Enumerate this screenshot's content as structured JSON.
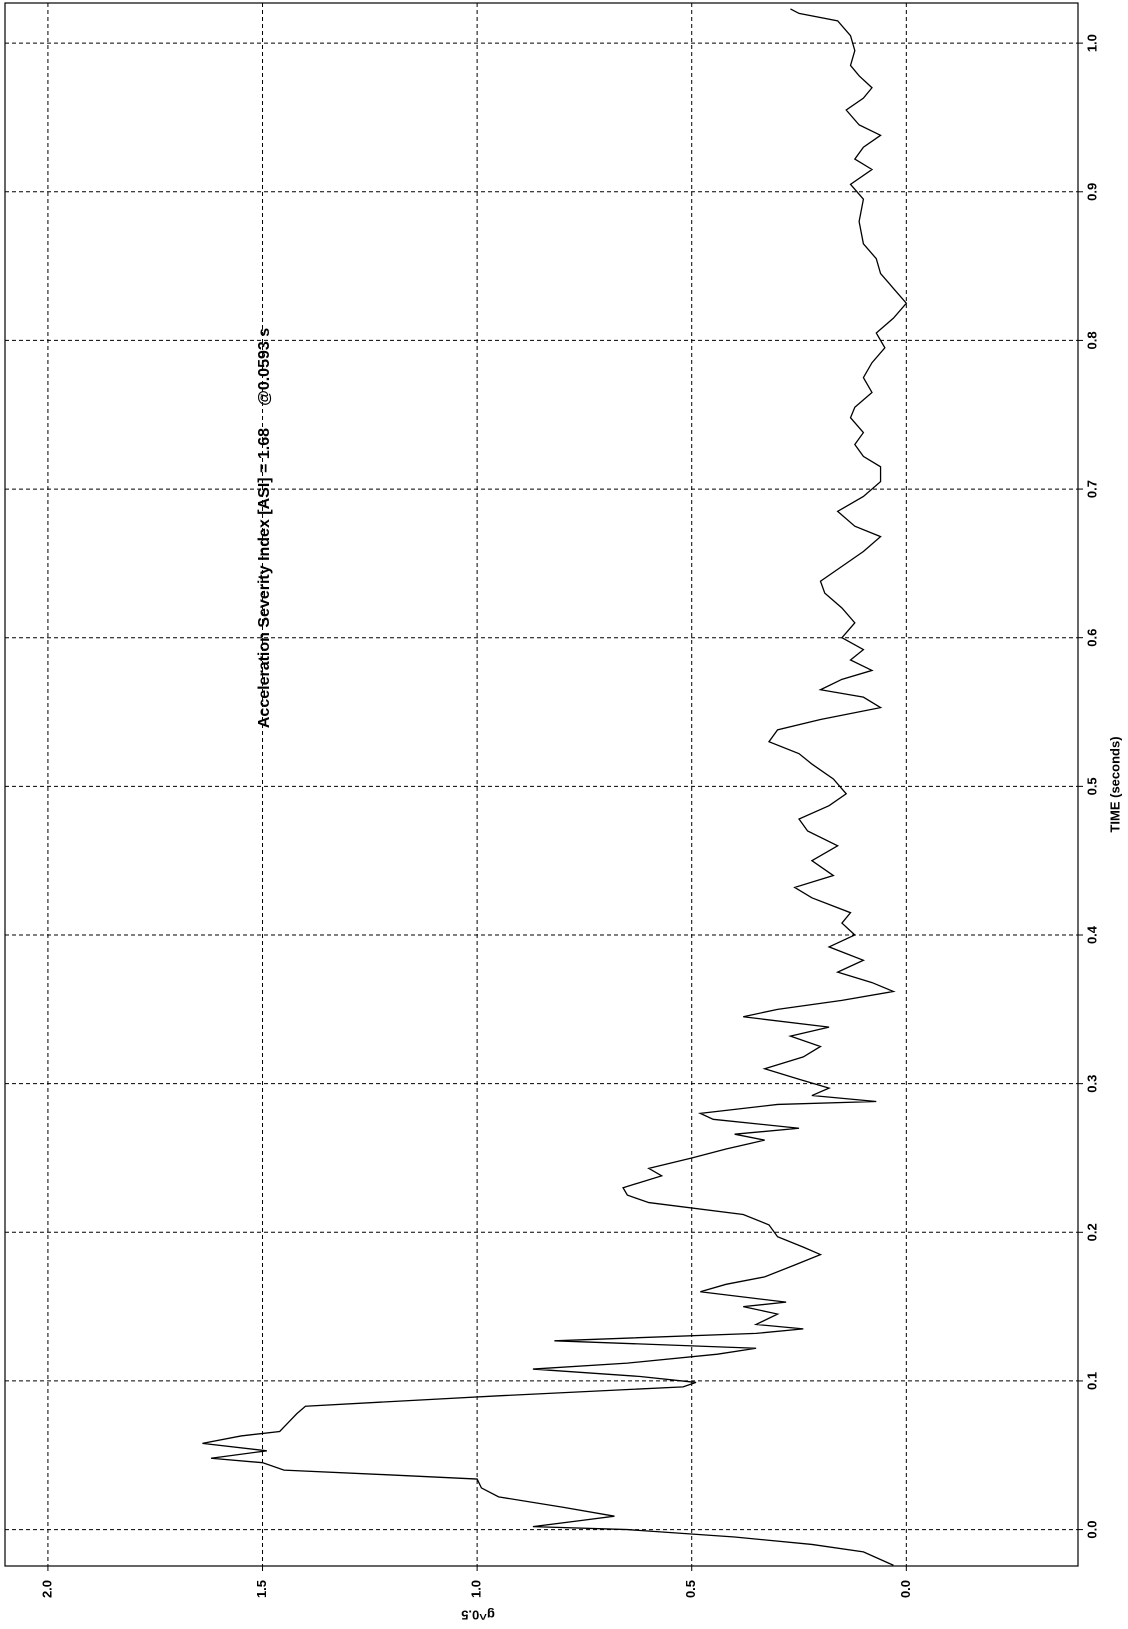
{
  "chart_data": {
    "type": "line",
    "xlabel": "TIME (seconds)",
    "ylabel": "g^0.5",
    "annotation": "Acceleration Severity Index [ASI] = 1.68     @0.0593 s",
    "xlim": [
      -0.0245,
      1.027
    ],
    "ylim": [
      -0.4,
      2.1
    ],
    "xticks": [
      {
        "value": 0,
        "label": "0.0"
      },
      0.1,
      0.2,
      0.3,
      0.4,
      0.5,
      0.6,
      0.7,
      0.8,
      0.9,
      {
        "value": 1,
        "label": "1.0"
      }
    ],
    "yticks": [
      {
        "value": 0,
        "label": "0.0"
      },
      0.5,
      {
        "value": 1,
        "label": "1.0"
      },
      1.5,
      {
        "value": 2,
        "label": "2.0"
      }
    ],
    "grid": true,
    "color": "#000000",
    "x": [
      -0.024,
      -0.015,
      -0.01,
      -0.005,
      0.0,
      0.002,
      0.006,
      0.009,
      0.015,
      0.022,
      0.028,
      0.034,
      0.037,
      0.04,
      0.045,
      0.048,
      0.053,
      0.058,
      0.063,
      0.066,
      0.072,
      0.078,
      0.083,
      0.09,
      0.096,
      0.099,
      0.103,
      0.108,
      0.112,
      0.118,
      0.122,
      0.127,
      0.132,
      0.135,
      0.138,
      0.145,
      0.15,
      0.153,
      0.16,
      0.165,
      0.17,
      0.178,
      0.185,
      0.19,
      0.197,
      0.205,
      0.212,
      0.22,
      0.225,
      0.23,
      0.238,
      0.243,
      0.25,
      0.256,
      0.262,
      0.266,
      0.27,
      0.276,
      0.28,
      0.286,
      0.288,
      0.292,
      0.297,
      0.303,
      0.31,
      0.318,
      0.325,
      0.332,
      0.338,
      0.345,
      0.35,
      0.356,
      0.362,
      0.368,
      0.375,
      0.383,
      0.392,
      0.4,
      0.408,
      0.415,
      0.425,
      0.432,
      0.44,
      0.45,
      0.46,
      0.47,
      0.478,
      0.487,
      0.495,
      0.505,
      0.515,
      0.522,
      0.53,
      0.538,
      0.545,
      0.553,
      0.56,
      0.565,
      0.572,
      0.578,
      0.585,
      0.592,
      0.6,
      0.61,
      0.62,
      0.63,
      0.638,
      0.648,
      0.658,
      0.668,
      0.675,
      0.685,
      0.695,
      0.705,
      0.715,
      0.722,
      0.73,
      0.738,
      0.748,
      0.755,
      0.765,
      0.775,
      0.785,
      0.795,
      0.805,
      0.815,
      0.825,
      0.835,
      0.845,
      0.855,
      0.865,
      0.88,
      0.895,
      0.905,
      0.915,
      0.922,
      0.93,
      0.938,
      0.945,
      0.955,
      0.963,
      0.97,
      0.978,
      0.985,
      0.995,
      1.005,
      1.015,
      1.02,
      1.023
    ],
    "values": [
      0.03,
      0.1,
      0.22,
      0.4,
      0.65,
      0.87,
      0.76,
      0.68,
      0.8,
      0.95,
      0.99,
      1.0,
      1.22,
      1.45,
      1.5,
      1.62,
      1.49,
      1.64,
      1.55,
      1.46,
      1.44,
      1.42,
      1.4,
      0.95,
      0.52,
      0.49,
      0.62,
      0.87,
      0.65,
      0.44,
      0.35,
      0.82,
      0.35,
      0.24,
      0.35,
      0.3,
      0.38,
      0.28,
      0.48,
      0.42,
      0.33,
      0.26,
      0.2,
      0.24,
      0.3,
      0.32,
      0.38,
      0.6,
      0.65,
      0.66,
      0.57,
      0.6,
      0.5,
      0.42,
      0.33,
      0.4,
      0.25,
      0.45,
      0.48,
      0.3,
      0.07,
      0.22,
      0.18,
      0.25,
      0.33,
      0.24,
      0.2,
      0.27,
      0.18,
      0.38,
      0.3,
      0.15,
      0.03,
      0.08,
      0.16,
      0.1,
      0.18,
      0.12,
      0.15,
      0.13,
      0.22,
      0.26,
      0.17,
      0.22,
      0.16,
      0.23,
      0.25,
      0.18,
      0.14,
      0.17,
      0.22,
      0.25,
      0.32,
      0.3,
      0.2,
      0.06,
      0.1,
      0.2,
      0.15,
      0.08,
      0.13,
      0.1,
      0.15,
      0.12,
      0.15,
      0.19,
      0.2,
      0.15,
      0.1,
      0.06,
      0.12,
      0.16,
      0.1,
      0.06,
      0.06,
      0.1,
      0.12,
      0.1,
      0.13,
      0.12,
      0.08,
      0.1,
      0.08,
      0.05,
      0.07,
      0.03,
      0.0,
      0.03,
      0.06,
      0.07,
      0.1,
      0.11,
      0.1,
      0.13,
      0.08,
      0.12,
      0.1,
      0.06,
      0.11,
      0.14,
      0.1,
      0.08,
      0.11,
      0.13,
      0.12,
      0.13,
      0.16,
      0.25,
      0.27
    ]
  }
}
